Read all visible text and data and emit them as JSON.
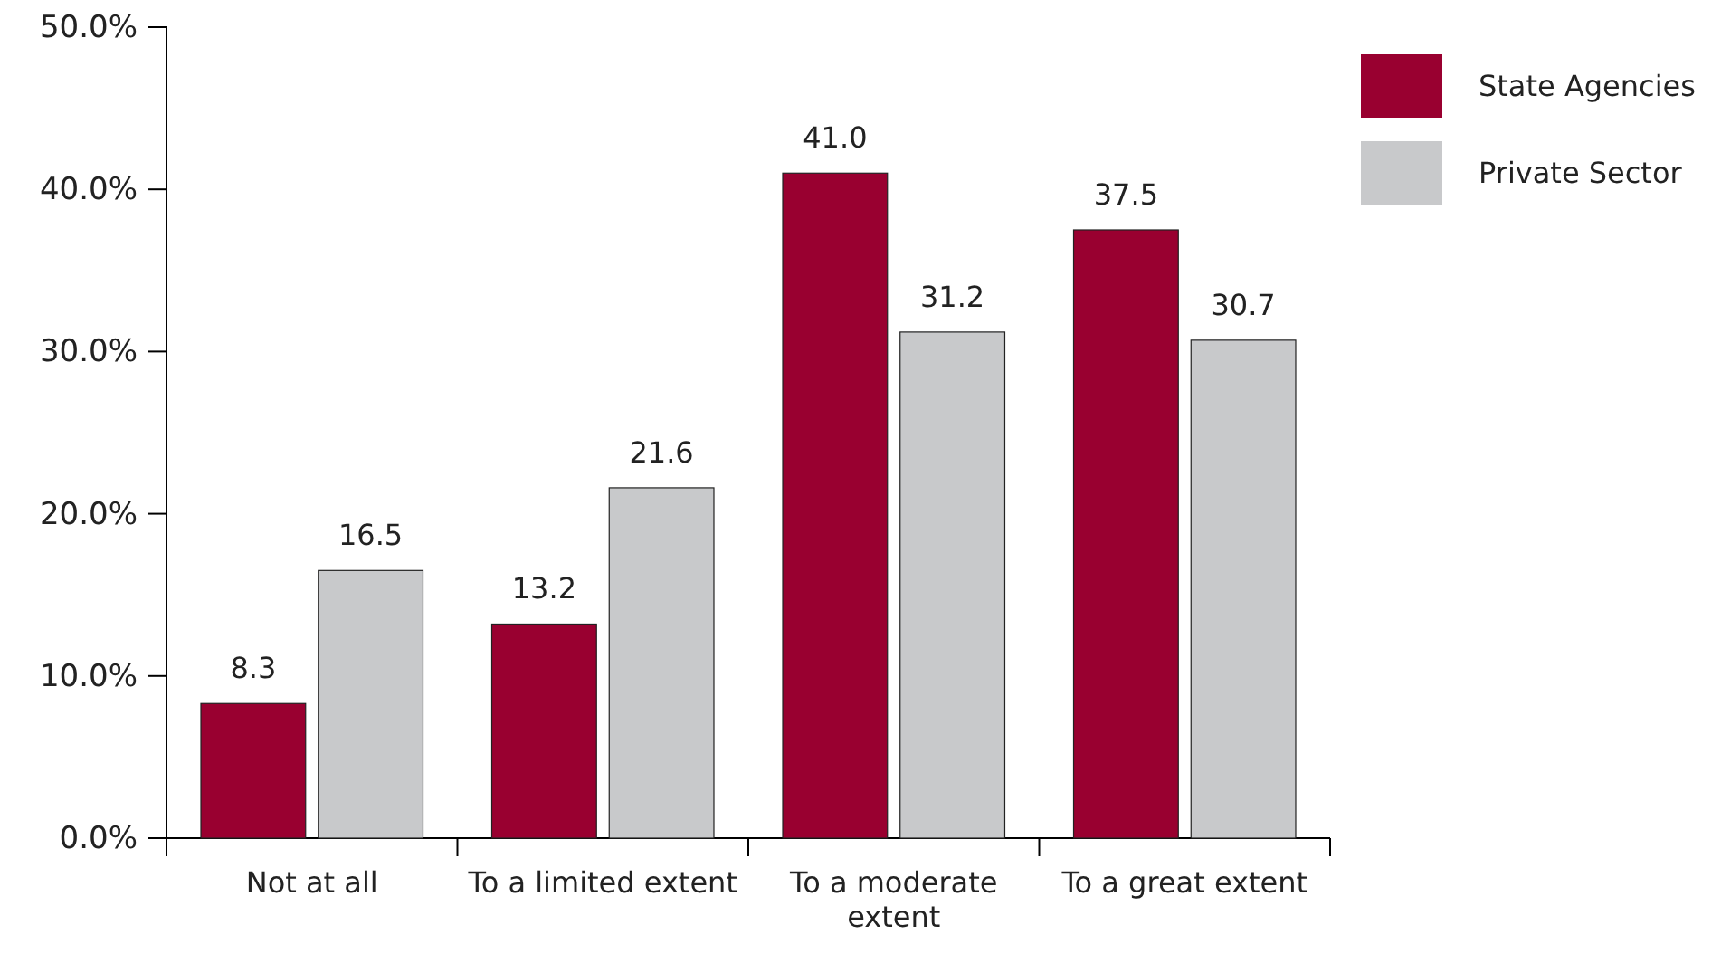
{
  "chart_data": {
    "type": "bar",
    "categories": [
      "Not at all",
      "To a limited extent",
      "To a moderate extent",
      "To a great extent"
    ],
    "series": [
      {
        "name": "State Agencies",
        "color": "#990030",
        "values": [
          8.3,
          13.2,
          41.0,
          37.5
        ],
        "value_labels": [
          "8.3",
          "13.2",
          "41.0",
          "37.5"
        ]
      },
      {
        "name": "Private Sector",
        "color": "#c8c9cb",
        "values": [
          16.5,
          21.6,
          31.2,
          30.7
        ],
        "value_labels": [
          "16.5",
          "21.6",
          "31.2",
          "30.7"
        ]
      }
    ],
    "ylim": [
      0,
      50
    ],
    "yticks": [
      {
        "value": 0,
        "label": "0.0%"
      },
      {
        "value": 10,
        "label": "10.0%"
      },
      {
        "value": 20,
        "label": "20.0%"
      },
      {
        "value": 30,
        "label": "30.0%"
      },
      {
        "value": 40,
        "label": "40.0%"
      },
      {
        "value": 50,
        "label": "50.0%"
      }
    ],
    "grid": false,
    "legend": "top right"
  }
}
